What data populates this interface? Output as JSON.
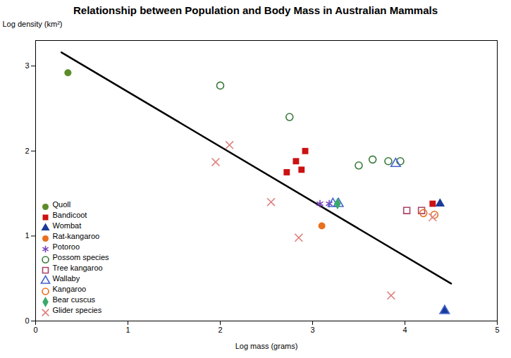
{
  "chart_data": {
    "type": "scatter",
    "title": "Relationship between Population and Body Mass in Australian Mammals",
    "xlabel": "Log mass (grams)",
    "ylabel": "Log density (km²)",
    "xlim": [
      0.0,
      5.0
    ],
    "ylim": [
      0.0,
      3.3
    ],
    "xticks": [
      0,
      1,
      2,
      3,
      4,
      5
    ],
    "yticks": [
      0,
      1,
      2,
      3
    ],
    "legend": "lower left",
    "series": [
      {
        "type": "line",
        "color": "#000000",
        "x": [
          0.28,
          4.5
        ],
        "values": [
          3.16,
          0.44
        ]
      },
      {
        "name": "Quoll",
        "marker": "circle",
        "color": "#5c8c2a",
        "x": [
          0.35
        ],
        "values": [
          2.92
        ]
      },
      {
        "name": "Bandicoot",
        "marker": "square",
        "color": "#cc1111",
        "x": [
          2.72,
          2.82,
          2.92,
          2.88,
          4.3
        ],
        "values": [
          1.75,
          1.88,
          2.0,
          1.78,
          1.38
        ]
      },
      {
        "name": "Wombat",
        "marker": "triangle",
        "color": "#1a3a99",
        "x": [
          4.38,
          4.43
        ],
        "values": [
          1.38,
          0.12
        ]
      },
      {
        "name": "Rat-kangaroo",
        "marker": "circle",
        "color": "#e87020",
        "x": [
          3.1
        ],
        "values": [
          1.12
        ]
      },
      {
        "name": "Potoroo",
        "marker": "asterisk",
        "color": "#7744bb",
        "x": [
          3.08,
          3.18
        ],
        "values": [
          1.38,
          1.38
        ]
      },
      {
        "name": "Possom species",
        "marker": "circle-open",
        "color": "#3a7a3a",
        "x": [
          2.0,
          2.75,
          3.5,
          3.65,
          3.82,
          3.95
        ],
        "values": [
          2.77,
          2.4,
          1.83,
          1.9,
          1.88,
          1.88
        ]
      },
      {
        "name": "Tree kangaroo",
        "marker": "square-open",
        "color": "#aa4466",
        "x": [
          4.02,
          4.18
        ],
        "values": [
          1.3,
          1.3
        ]
      },
      {
        "name": "Wallaby",
        "marker": "triangle-open",
        "color": "#4466cc",
        "x": [
          3.22,
          3.28,
          3.9,
          4.43
        ],
        "values": [
          1.38,
          1.38,
          1.85,
          0.12
        ]
      },
      {
        "name": "Kangaroo",
        "marker": "circle-open",
        "color": "#e87020",
        "x": [
          4.2,
          4.32
        ],
        "values": [
          1.27,
          1.25
        ]
      },
      {
        "name": "Bear cuscus",
        "marker": "diamond",
        "color": "#3aaa6a",
        "x": [
          3.27
        ],
        "values": [
          1.38
        ]
      },
      {
        "name": "Glider species",
        "marker": "times",
        "color": "#e08080",
        "x": [
          1.95,
          2.1,
          2.55,
          2.85,
          3.85,
          4.3
        ],
        "values": [
          1.87,
          2.07,
          1.4,
          0.98,
          0.3,
          1.22
        ]
      }
    ]
  }
}
